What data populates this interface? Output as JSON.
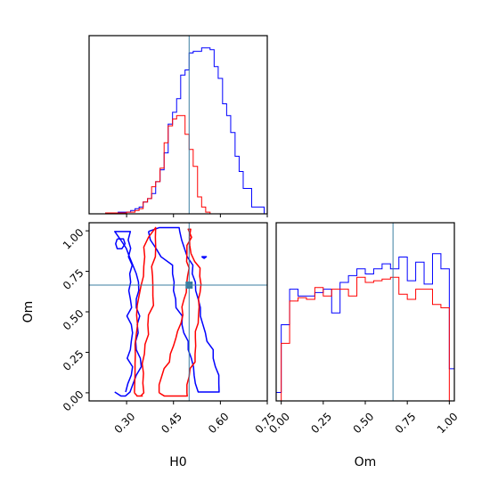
{
  "chart_data": {
    "type": "corner",
    "parameters": [
      "H0",
      "Om"
    ],
    "truth": {
      "H0": 0.5,
      "Om": 0.665
    },
    "colors": {
      "series_a": "#0000ff",
      "series_b": "#ff0000",
      "truth": "#3b7ea1"
    },
    "series": [
      {
        "color": "#0000ff"
      },
      {
        "color": "#ff0000"
      }
    ],
    "panels": [
      {
        "id": "hist-H0",
        "type": "step-histogram",
        "xlim": [
          0.18,
          0.75
        ],
        "xticks": [
          0.3,
          0.45,
          0.6,
          0.75
        ],
        "x_tick_labels_shown": false,
        "bin_edges": [
          0.18,
          0.193,
          0.207,
          0.22,
          0.233,
          0.247,
          0.26,
          0.273,
          0.287,
          0.3,
          0.313,
          0.327,
          0.34,
          0.353,
          0.367,
          0.38,
          0.393,
          0.407,
          0.42,
          0.433,
          0.447,
          0.46,
          0.473,
          0.487,
          0.5,
          0.513,
          0.527,
          0.54,
          0.553,
          0.567,
          0.58,
          0.593,
          0.607,
          0.62,
          0.633,
          0.647,
          0.66,
          0.673,
          0.687,
          0.7,
          0.713,
          0.727,
          0.74
        ],
        "counts": [
          [
            0,
            0,
            0,
            0,
            0.005,
            0.005,
            0.005,
            0.01,
            0.01,
            0.01,
            0.02,
            0.03,
            0.04,
            0.07,
            0.09,
            0.12,
            0.19,
            0.26,
            0.36,
            0.53,
            0.6,
            0.68,
            0.82,
            0.85,
            0.95,
            0.96,
            0.96,
            0.98,
            0.98,
            0.97,
            0.87,
            0.8,
            0.65,
            0.58,
            0.48,
            0.34,
            0.25,
            0.15,
            0.15,
            0.04,
            0.04,
            0.04
          ],
          [
            0,
            0,
            0,
            0,
            0.005,
            0.005,
            0.005,
            0.005,
            0.005,
            0.01,
            0.01,
            0.02,
            0.03,
            0.07,
            0.09,
            0.16,
            0.19,
            0.27,
            0.42,
            0.52,
            0.56,
            0.58,
            0.58,
            0.47,
            0.38,
            0.28,
            0.1,
            0.04,
            0.01,
            0,
            0,
            0,
            0,
            0,
            0,
            0,
            0,
            0,
            0,
            0,
            0,
            0
          ]
        ]
      },
      {
        "id": "hist-Om",
        "type": "step-histogram",
        "xlim": [
          -0.03,
          1.03
        ],
        "xticks": [
          0.0,
          0.25,
          0.5,
          0.75,
          1.0
        ],
        "x_tick_labels": [
          "0.00",
          "0.25",
          "0.50",
          "0.75",
          "1.00"
        ],
        "xlabel": "Om",
        "bin_edges": [
          -0.03,
          0.0,
          0.05,
          0.1,
          0.15,
          0.2,
          0.25,
          0.3,
          0.35,
          0.4,
          0.45,
          0.5,
          0.55,
          0.6,
          0.65,
          0.7,
          0.75,
          0.8,
          0.85,
          0.9,
          0.95,
          1.0,
          1.03
        ],
        "counts": [
          [
            0.05,
            0.45,
            0.66,
            0.62,
            0.62,
            0.64,
            0.66,
            0.52,
            0.7,
            0.74,
            0.78,
            0.75,
            0.78,
            0.81,
            0.78,
            0.85,
            0.71,
            0.82,
            0.69,
            0.87,
            0.78,
            0.19
          ],
          [
            0,
            0.34,
            0.59,
            0.61,
            0.6,
            0.67,
            0.62,
            0.66,
            0.66,
            0.62,
            0.73,
            0.7,
            0.71,
            0.72,
            0.73,
            0.63,
            0.6,
            0.66,
            0.66,
            0.57,
            0.55,
            0
          ]
        ]
      },
      {
        "id": "contour-H0-Om",
        "type": "contour",
        "xlim": [
          0.18,
          0.75
        ],
        "ylim": [
          -0.05,
          1.05
        ],
        "xticks": [
          0.3,
          0.45,
          0.6,
          0.75
        ],
        "x_tick_labels": [
          "0.30",
          "0.45",
          "0.60",
          "0.75"
        ],
        "yticks": [
          0.0,
          0.25,
          0.5,
          0.75,
          1.0
        ],
        "y_tick_labels": [
          "0.00",
          "0.25",
          "0.50",
          "0.75",
          "1.00"
        ],
        "xlabel": "H0",
        "ylabel": "Om",
        "contours": [
          {
            "series": 0,
            "x": [
              0.297,
              0.304,
              0.315,
              0.319,
              0.302,
              0.312,
              0.315,
              0.319,
              0.315,
              0.301,
              0.316,
              0.312,
              0.307,
              0.313,
              0.31,
              0.318,
              0.306,
              0.313,
              0.305,
              0.312,
              0.262,
              0.281,
              0.299,
              0.309,
              0.32,
              0.331,
              0.338,
              0.339,
              0.331,
              0.331,
              0.342,
              0.334,
              0.337,
              0.329,
              0.331,
              0.344,
              0.347,
              0.331,
              0.321,
              0.311,
              0.296,
              0.282,
              0.262
            ],
            "y": [
              0.005,
              0.057,
              0.109,
              0.161,
              0.213,
              0.266,
              0.318,
              0.37,
              0.422,
              0.474,
              0.526,
              0.579,
              0.631,
              0.683,
              0.735,
              0.788,
              0.84,
              0.892,
              0.944,
              0.996,
              0.996,
              0.944,
              0.892,
              0.84,
              0.788,
              0.735,
              0.683,
              0.631,
              0.579,
              0.526,
              0.474,
              0.422,
              0.37,
              0.318,
              0.266,
              0.213,
              0.161,
              0.109,
              0.057,
              0.005,
              -0.02,
              -0.02,
              0.005
            ]
          },
          {
            "series": 0,
            "x": [
              0.37,
              0.376,
              0.394,
              0.41,
              0.447,
              0.447,
              0.452,
              0.45,
              0.457,
              0.458,
              0.478,
              0.477,
              0.483,
              0.497,
              0.497,
              0.507,
              0.514,
              0.516,
              0.52,
              0.529,
              0.596,
              0.595,
              0.595,
              0.584,
              0.577,
              0.577,
              0.557,
              0.552,
              0.544,
              0.536,
              0.536,
              0.529,
              0.521,
              0.52,
              0.51,
              0.512,
              0.494,
              0.485,
              0.476,
              0.47,
              0.468,
              0.455,
              0.405,
              0.37
            ],
            "y": [
              0.996,
              0.944,
              0.892,
              0.84,
              0.788,
              0.735,
              0.683,
              0.631,
              0.579,
              0.526,
              0.474,
              0.422,
              0.37,
              0.318,
              0.266,
              0.213,
              0.161,
              0.109,
              0.057,
              0.005,
              0.005,
              0.057,
              0.109,
              0.161,
              0.213,
              0.266,
              0.318,
              0.37,
              0.422,
              0.474,
              0.526,
              0.579,
              0.631,
              0.683,
              0.735,
              0.788,
              0.84,
              0.892,
              0.944,
              0.996,
              1.02,
              1.02,
              1.02,
              0.996
            ]
          },
          {
            "series": 1,
            "x": [
              0.325,
              0.326,
              0.327,
              0.327,
              0.328,
              0.327,
              0.331,
              0.335,
              0.332,
              0.334,
              0.34,
              0.346,
              0.354,
              0.355,
              0.358,
              0.355,
              0.37,
              0.393,
              0.392,
              0.393,
              0.392,
              0.38,
              0.383,
              0.384,
              0.384,
              0.386,
              0.37,
              0.368,
              0.37,
              0.359,
              0.357,
              0.35,
              0.354,
              0.352,
              0.355,
              0.345,
              0.35,
              0.343,
              0.333,
              0.334,
              0.325
            ],
            "y": [
              0.0,
              0.06,
              0.12,
              0.18,
              0.24,
              0.3,
              0.36,
              0.42,
              0.48,
              0.54,
              0.6,
              0.66,
              0.72,
              0.78,
              0.84,
              0.9,
              0.96,
              1.02,
              0.96,
              0.9,
              0.84,
              0.78,
              0.72,
              0.66,
              0.6,
              0.54,
              0.48,
              0.42,
              0.36,
              0.3,
              0.24,
              0.18,
              0.12,
              0.06,
              0.0,
              -0.02,
              -0.02,
              -0.02,
              -0.02,
              -0.02,
              0.0
            ]
          },
          {
            "series": 1,
            "x": [
              0.404,
              0.404,
              0.412,
              0.42,
              0.437,
              0.44,
              0.45,
              0.458,
              0.463,
              0.474,
              0.48,
              0.477,
              0.484,
              0.491,
              0.492,
              0.495,
              0.5,
              0.492,
              0.493,
              0.493,
              0.508,
              0.497,
              0.505,
              0.501,
              0.502,
              0.506,
              0.518,
              0.535,
              0.534,
              0.538,
              0.535,
              0.53,
              0.532,
              0.53,
              0.529,
              0.52,
              0.52,
              0.521,
              0.519,
              0.519,
              0.503,
              0.5,
              0.493,
              0.493,
              0.494,
              0.487,
              0.47,
              0.458,
              0.452,
              0.445,
              0.442,
              0.433,
              0.421,
              0.404
            ],
            "y": [
              0.0,
              0.05,
              0.1,
              0.15,
              0.19,
              0.24,
              0.29,
              0.34,
              0.38,
              0.43,
              0.48,
              0.53,
              0.58,
              0.62,
              0.67,
              0.72,
              0.77,
              0.81,
              0.86,
              0.91,
              0.96,
              1.01,
              1.01,
              0.96,
              0.91,
              0.86,
              0.81,
              0.77,
              0.72,
              0.67,
              0.62,
              0.58,
              0.53,
              0.48,
              0.43,
              0.38,
              0.34,
              0.29,
              0.24,
              0.19,
              0.15,
              0.1,
              0.05,
              0.0,
              -0.02,
              -0.02,
              -0.02,
              -0.02,
              -0.02,
              -0.02,
              -0.02,
              -0.02,
              -0.02,
              0.0
            ]
          },
          {
            "series": 0,
            "x": [
              0.27,
              0.29,
              0.295,
              0.285,
              0.27,
              0.265,
              0.27
            ],
            "y": [
              0.95,
              0.95,
              0.92,
              0.89,
              0.89,
              0.92,
              0.95
            ]
          },
          {
            "series": 0,
            "x": [
              0.54,
              0.555,
              0.548,
              0.54
            ],
            "y": [
              0.84,
              0.84,
              0.83,
              0.84
            ]
          }
        ]
      }
    ]
  }
}
